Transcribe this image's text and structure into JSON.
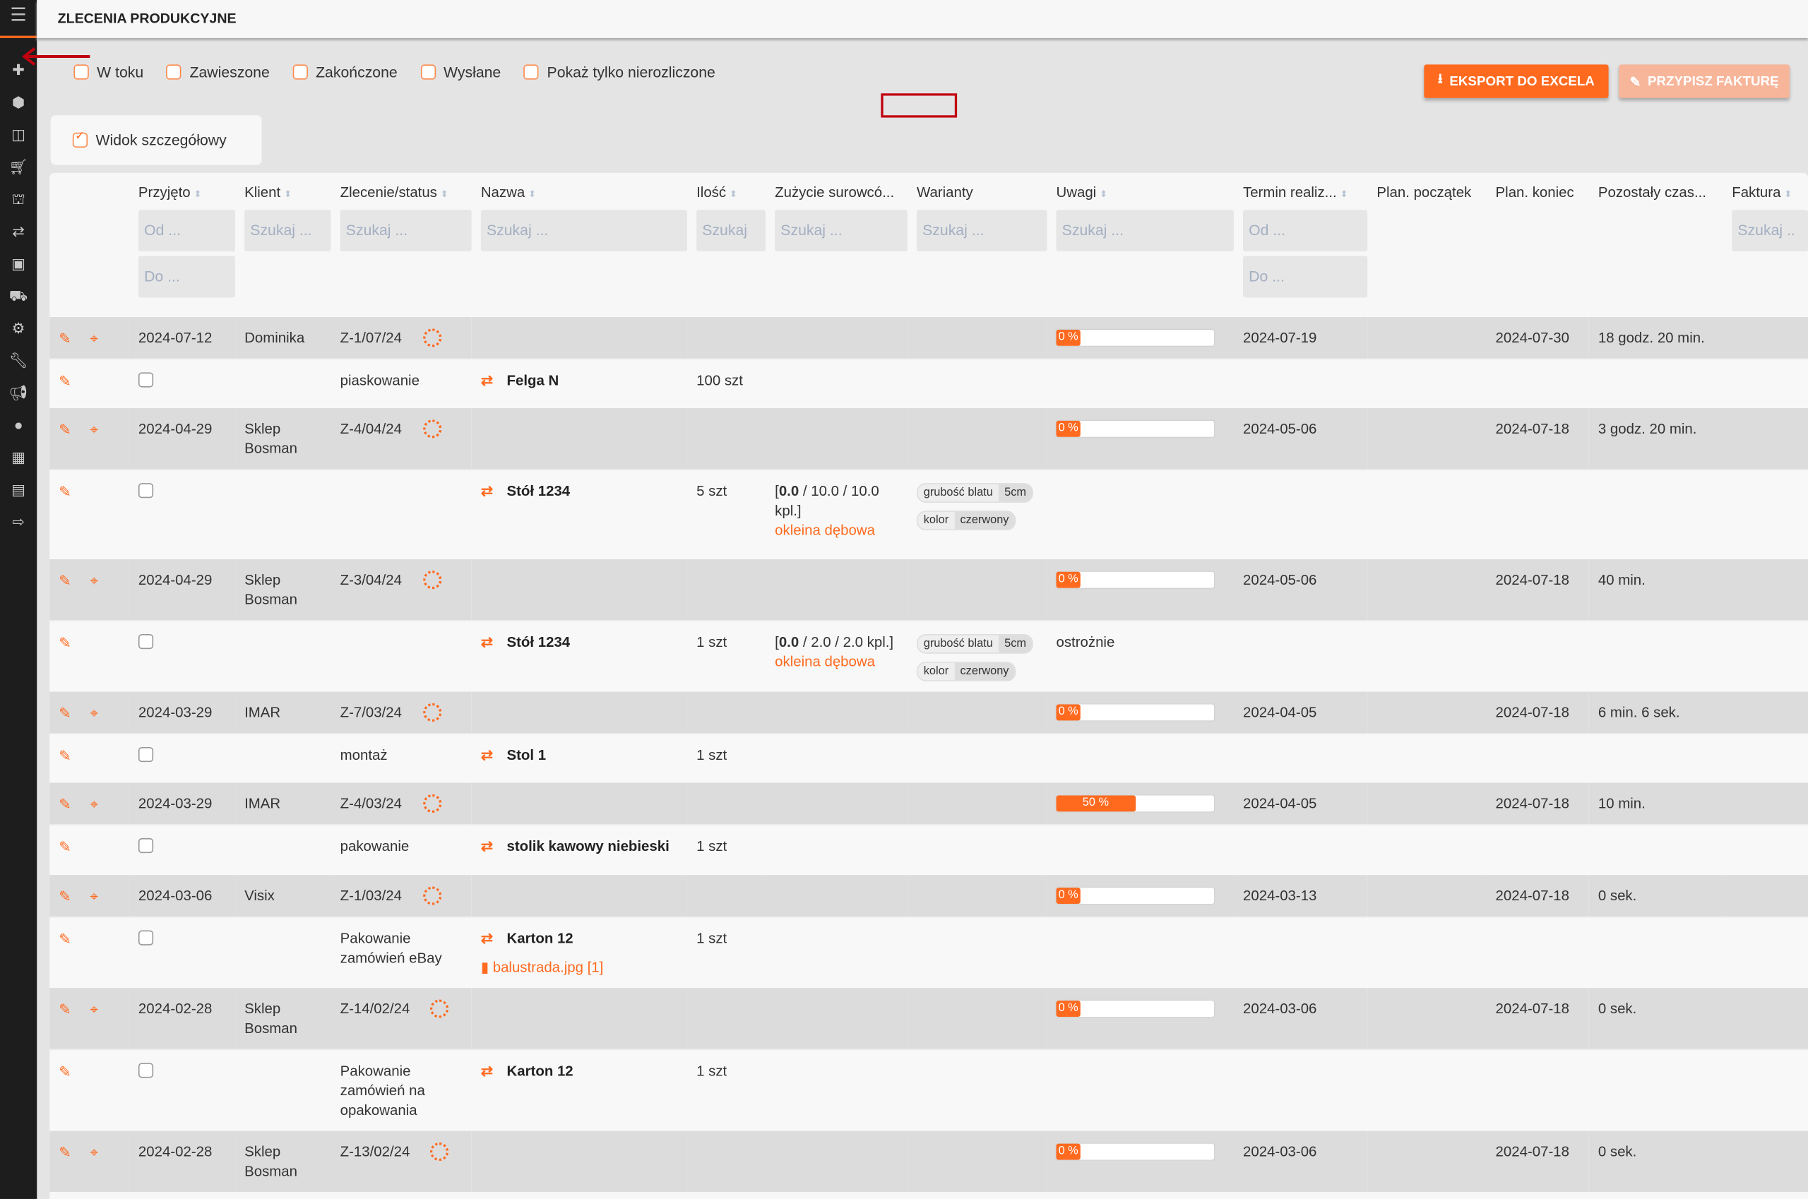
{
  "header": {
    "title": "ZLECENIA PRODUKCYJNE"
  },
  "sidebar": {
    "icons": [
      "plus-icon",
      "cube-icon",
      "columns-icon",
      "cart-icon",
      "sitemap-icon",
      "exchange-icon",
      "briefcase-icon",
      "truck-icon",
      "cogs-icon",
      "wrench-icon",
      "bullhorn-icon",
      "user-icon",
      "calendar-icon",
      "book-icon",
      "sign-out-icon"
    ]
  },
  "filters": [
    {
      "label": "W toku",
      "checked": false
    },
    {
      "label": "Zawieszone",
      "checked": false
    },
    {
      "label": "Zakończone",
      "checked": false
    },
    {
      "label": "Wysłane",
      "checked": false
    },
    {
      "label": "Pokaż tylko nierozliczone",
      "checked": false
    }
  ],
  "toolbar": {
    "export_label": "EKSPORT DO EXCELA",
    "invoice_label": "PRZYPISZ FAKTURĘ"
  },
  "detail_view": {
    "label": "Widok szczegółowy",
    "checked": true
  },
  "columns": [
    "Przyjęto",
    "Klient",
    "Zlecenie/status",
    "Nazwa",
    "Ilość",
    "Zużycie surowcó...",
    "Warianty",
    "Uwagi",
    "Termin realiz...",
    "Plan. początek",
    "Plan. koniec",
    "Pozostały czas...",
    "Faktura"
  ],
  "search": {
    "from": "Od ...",
    "to": "Do ...",
    "search": "Szukaj ...",
    "search_short": "Szukaj",
    "search_trunc": "Szukaj .."
  },
  "colors": {
    "accent": "#ff6a1f",
    "sidebar": "#1d1d1d"
  },
  "orders": [
    {
      "date": "2024-07-12",
      "client": "Dominika",
      "order": "Z-1/07/24",
      "progress": 0,
      "progress_label": "0 %",
      "deadline": "2024-07-19",
      "plan_end": "2024-07-30",
      "remaining": "18 godz. 20 min.",
      "detail": {
        "operation": "piaskowanie",
        "name": "Felga N",
        "qty": "100 szt",
        "usage_bold": "",
        "usage_rest": "",
        "material": "",
        "variants": [],
        "notes": "",
        "attachment": ""
      }
    },
    {
      "date": "2024-04-29",
      "client": "Sklep Bosman",
      "order": "Z-4/04/24",
      "progress": 0,
      "progress_label": "0 %",
      "deadline": "2024-05-06",
      "plan_end": "2024-07-18",
      "remaining": "3 godz. 20 min.",
      "detail": {
        "operation": "",
        "name": "Stół 1234",
        "qty": "5 szt",
        "usage_bold": "0.0",
        "usage_rest": " / 10.0 / 10.0 kpl.]",
        "material": "okleina dębowa",
        "variants": [
          {
            "k": "grubość blatu",
            "v": "5cm"
          },
          {
            "k": "kolor",
            "v": "czerwony"
          }
        ],
        "notes": "",
        "attachment": ""
      }
    },
    {
      "date": "2024-04-29",
      "client": "Sklep Bosman",
      "order": "Z-3/04/24",
      "progress": 0,
      "progress_label": "0 %",
      "deadline": "2024-05-06",
      "plan_end": "2024-07-18",
      "remaining": "40 min.",
      "detail": {
        "operation": "",
        "name": "Stół 1234",
        "qty": "1 szt",
        "usage_bold": "0.0",
        "usage_rest": " / 2.0 / 2.0 kpl.]",
        "material": "okleina dębowa",
        "variants": [
          {
            "k": "grubość blatu",
            "v": "5cm"
          },
          {
            "k": "kolor",
            "v": "czerwony"
          }
        ],
        "notes": "ostrożnie",
        "attachment": ""
      }
    },
    {
      "date": "2024-03-29",
      "client": "IMAR",
      "order": "Z-7/03/24",
      "progress": 0,
      "progress_label": "0 %",
      "deadline": "2024-04-05",
      "plan_end": "2024-07-18",
      "remaining": "6 min. 6 sek.",
      "detail": {
        "operation": "montaż",
        "name": "Stol 1",
        "qty": "1 szt",
        "usage_bold": "",
        "usage_rest": "",
        "material": "",
        "variants": [],
        "notes": "",
        "attachment": ""
      }
    },
    {
      "date": "2024-03-29",
      "client": "IMAR",
      "order": "Z-4/03/24",
      "progress": 50,
      "progress_label": "50 %",
      "deadline": "2024-04-05",
      "plan_end": "2024-07-18",
      "remaining": "10 min.",
      "detail": {
        "operation": "pakowanie",
        "name": "stolik kawowy niebieski",
        "qty": "1 szt",
        "usage_bold": "",
        "usage_rest": "",
        "material": "",
        "variants": [],
        "notes": "",
        "attachment": ""
      }
    },
    {
      "date": "2024-03-06",
      "client": "Visix",
      "order": "Z-1/03/24",
      "progress": 0,
      "progress_label": "0 %",
      "deadline": "2024-03-13",
      "plan_end": "2024-07-18",
      "remaining": "0 sek.",
      "detail": {
        "operation": "Pakowanie zamówień eBay",
        "name": "Karton 12",
        "qty": "1 szt",
        "usage_bold": "",
        "usage_rest": "",
        "material": "",
        "variants": [],
        "notes": "",
        "attachment": "balustrada.jpg [1]"
      }
    },
    {
      "date": "2024-02-28",
      "client": "Sklep Bosman",
      "order": "Z-14/02/24",
      "progress": 0,
      "progress_label": "0 %",
      "deadline": "2024-03-06",
      "plan_end": "2024-07-18",
      "remaining": "0 sek.",
      "detail": {
        "operation": "Pakowanie zamówień na opakowania",
        "name": "Karton 12",
        "qty": "1 szt",
        "usage_bold": "",
        "usage_rest": "",
        "material": "",
        "variants": [],
        "notes": "",
        "attachment": ""
      }
    },
    {
      "date": "2024-02-28",
      "client": "Sklep Bosman",
      "order": "Z-13/02/24",
      "progress": 0,
      "progress_label": "0 %",
      "deadline": "2024-03-06",
      "plan_end": "2024-07-18",
      "remaining": "0 sek.",
      "detail": null
    }
  ]
}
